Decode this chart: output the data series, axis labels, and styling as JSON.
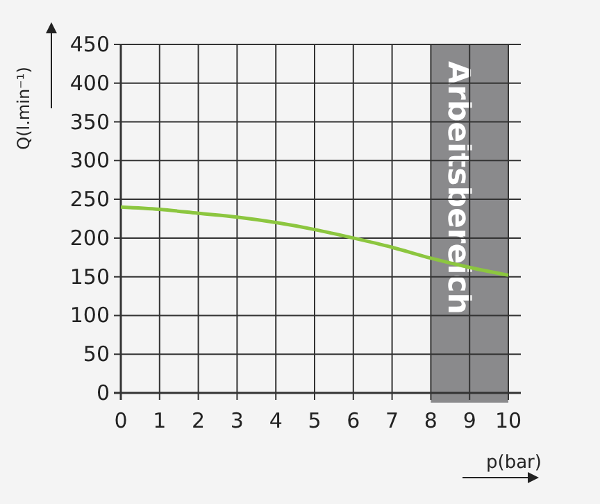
{
  "chart_data": {
    "type": "line",
    "xlabel": "p(bar)",
    "ylabel": "Q(l.min⁻¹)",
    "x": [
      0,
      1,
      2,
      3,
      4,
      5,
      6,
      7,
      8,
      9,
      10
    ],
    "series": [
      {
        "color": "#8cc63f",
        "values": [
          240,
          237,
          232,
          227,
          220,
          211,
          200,
          188,
          174,
          162,
          152
        ]
      }
    ],
    "xlim": [
      0,
      10
    ],
    "xticks": [
      0,
      1,
      2,
      3,
      4,
      5,
      6,
      7,
      8,
      9,
      10
    ],
    "ylim": [
      0,
      450
    ],
    "yticks": [
      0,
      50,
      100,
      150,
      200,
      250,
      300,
      350,
      400,
      450
    ],
    "grid": true,
    "marker": "none",
    "line_style": "solid",
    "bands": [
      {
        "axis": "x",
        "from": 8,
        "to": 10,
        "label": "Arbeitsbereich",
        "color": "#8a8a8c"
      }
    ]
  }
}
